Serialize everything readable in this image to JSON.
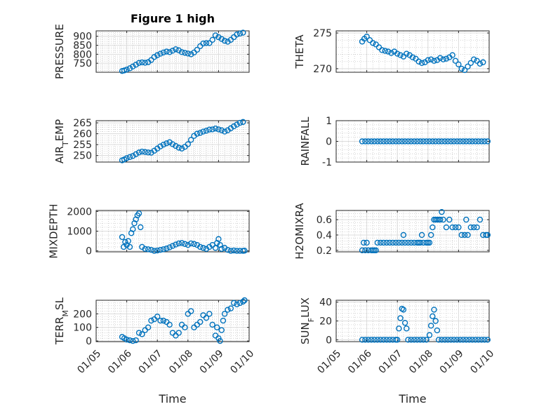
{
  "figure": {
    "title": "Figure 1 high",
    "xlabel": "Time",
    "marker_color": "#0072BD",
    "x_ticks": [
      "01/05",
      "01/06",
      "01/07",
      "01/08",
      "01/09",
      "01/10"
    ],
    "x_start": 5.0,
    "x_end": 10.0
  },
  "chart_data": [
    {
      "type": "scatter",
      "id": "pressure",
      "ylabel": "PRESSURE",
      "ylim": [
        700,
        930
      ],
      "yticks": [
        750,
        800,
        850,
        900
      ],
      "x": [
        5.85,
        5.92,
        6.0,
        6.1,
        6.2,
        6.3,
        6.4,
        6.5,
        6.6,
        6.7,
        6.8,
        6.9,
        7.0,
        7.1,
        7.2,
        7.3,
        7.4,
        7.5,
        7.6,
        7.7,
        7.8,
        7.9,
        8.0,
        8.1,
        8.2,
        8.3,
        8.4,
        8.5,
        8.6,
        8.7,
        8.8,
        8.9,
        9.0,
        9.1,
        9.2,
        9.3,
        9.4,
        9.5,
        9.6,
        9.7,
        9.8
      ],
      "y": [
        707,
        710,
        715,
        722,
        732,
        742,
        752,
        755,
        753,
        756,
        768,
        785,
        795,
        803,
        810,
        815,
        812,
        820,
        828,
        822,
        812,
        808,
        804,
        800,
        810,
        825,
        845,
        860,
        862,
        862,
        880,
        905,
        895,
        885,
        875,
        870,
        880,
        895,
        910,
        915,
        920
      ]
    },
    {
      "type": "scatter",
      "id": "theta",
      "ylabel": "THETA",
      "ylim": [
        269.5,
        275.3
      ],
      "yticks": [
        270,
        275
      ],
      "x": [
        5.85,
        5.92,
        6.0,
        6.1,
        6.2,
        6.3,
        6.4,
        6.5,
        6.6,
        6.7,
        6.8,
        6.9,
        7.0,
        7.1,
        7.2,
        7.3,
        7.4,
        7.5,
        7.6,
        7.7,
        7.8,
        7.9,
        8.0,
        8.1,
        8.2,
        8.3,
        8.4,
        8.5,
        8.6,
        8.7,
        8.8,
        8.9,
        9.0,
        9.1,
        9.2,
        9.3,
        9.4,
        9.5,
        9.6,
        9.7,
        9.8
      ],
      "y": [
        273.8,
        274.2,
        274.5,
        274.0,
        273.6,
        273.4,
        273.0,
        272.6,
        272.5,
        272.4,
        272.2,
        272.4,
        272.1,
        271.9,
        271.7,
        272.1,
        271.9,
        271.6,
        271.4,
        271.0,
        270.8,
        270.9,
        271.2,
        271.3,
        271.1,
        271.2,
        271.5,
        271.3,
        271.4,
        271.6,
        271.9,
        271.1,
        270.6,
        270.0,
        269.8,
        270.3,
        270.8,
        271.3,
        271.1,
        270.7,
        270.9
      ]
    },
    {
      "type": "scatter",
      "id": "air-temp",
      "ylabel": "AIR_TEMP",
      "ylim": [
        247,
        266
      ],
      "yticks": [
        250,
        255,
        260,
        265
      ],
      "x": [
        5.85,
        5.92,
        6.0,
        6.1,
        6.2,
        6.3,
        6.4,
        6.5,
        6.6,
        6.7,
        6.8,
        6.9,
        7.0,
        7.1,
        7.2,
        7.3,
        7.4,
        7.5,
        7.6,
        7.7,
        7.8,
        7.9,
        8.0,
        8.1,
        8.2,
        8.3,
        8.4,
        8.5,
        8.6,
        8.7,
        8.8,
        8.9,
        9.0,
        9.1,
        9.2,
        9.3,
        9.4,
        9.5,
        9.6,
        9.7,
        9.8
      ],
      "y": [
        247.8,
        248.2,
        248.8,
        249.3,
        249.8,
        250.6,
        251.4,
        251.8,
        251.6,
        251.4,
        251.3,
        252.2,
        253.2,
        254.2,
        255.0,
        255.6,
        256.1,
        255.2,
        254.4,
        253.6,
        253.2,
        254.0,
        255.2,
        257.2,
        259.0,
        260.0,
        260.4,
        261.0,
        261.4,
        261.9,
        262.0,
        262.4,
        262.0,
        261.6,
        261.0,
        261.6,
        262.5,
        263.4,
        264.2,
        265.0,
        265.4
      ]
    },
    {
      "type": "scatter",
      "id": "rainfall",
      "ylabel": "RAINFALL",
      "ylim": [
        -1,
        1
      ],
      "yticks": [
        -1,
        0,
        1
      ],
      "x": [
        5.85,
        5.95,
        6.05,
        6.15,
        6.25,
        6.35,
        6.45,
        6.55,
        6.65,
        6.75,
        6.85,
        6.95,
        7.05,
        7.15,
        7.25,
        7.35,
        7.45,
        7.55,
        7.65,
        7.75,
        7.85,
        7.95,
        8.05,
        8.15,
        8.25,
        8.35,
        8.45,
        8.55,
        8.65,
        8.75,
        8.85,
        8.95,
        9.05,
        9.15,
        9.25,
        9.35,
        9.45,
        9.55,
        9.65,
        9.75,
        9.85,
        9.95
      ],
      "y": [
        0,
        0,
        0,
        0,
        0,
        0,
        0,
        0,
        0,
        0,
        0,
        0,
        0,
        0,
        0,
        0,
        0,
        0,
        0,
        0,
        0,
        0,
        0,
        0,
        0,
        0,
        0,
        0,
        0,
        0,
        0,
        0,
        0,
        0,
        0,
        0,
        0,
        0,
        0,
        0,
        0,
        0
      ]
    },
    {
      "type": "scatter",
      "id": "mixdepth",
      "ylabel": "MIXDEPTH",
      "ylim": [
        -50,
        2050
      ],
      "yticks": [
        0,
        1000,
        2000
      ],
      "x": [
        5.85,
        5.9,
        5.95,
        6.0,
        6.05,
        6.1,
        6.15,
        6.2,
        6.25,
        6.3,
        6.35,
        6.4,
        6.45,
        6.5,
        6.6,
        6.7,
        6.8,
        6.9,
        7.0,
        7.1,
        7.2,
        7.3,
        7.4,
        7.5,
        7.6,
        7.7,
        7.8,
        7.9,
        8.0,
        8.1,
        8.2,
        8.3,
        8.4,
        8.5,
        8.6,
        8.7,
        8.8,
        8.9,
        8.95,
        9.0,
        9.05,
        9.1,
        9.2,
        9.3,
        9.4,
        9.5,
        9.6,
        9.7,
        9.8,
        9.85
      ],
      "y": [
        700,
        200,
        450,
        300,
        500,
        200,
        900,
        1100,
        1400,
        1600,
        1800,
        1900,
        1200,
        200,
        100,
        80,
        50,
        0,
        20,
        50,
        80,
        120,
        180,
        250,
        320,
        380,
        400,
        350,
        300,
        380,
        350,
        300,
        200,
        150,
        100,
        200,
        300,
        150,
        400,
        600,
        300,
        100,
        150,
        50,
        0,
        20,
        0,
        0,
        0,
        10
      ]
    },
    {
      "type": "scatter",
      "id": "h2omixra",
      "ylabel": "H2OMIXRA",
      "ylim": [
        0.18,
        0.72
      ],
      "yticks": [
        0.2,
        0.4,
        0.6
      ],
      "x": [
        5.85,
        5.95,
        6.05,
        6.15,
        6.25,
        6.35,
        6.45,
        6.55,
        6.65,
        6.75,
        6.85,
        6.95,
        7.05,
        7.15,
        7.25,
        7.35,
        7.45,
        7.55,
        7.65,
        7.75,
        7.85,
        7.95,
        8.0,
        8.05,
        8.1,
        8.15,
        8.2,
        8.25,
        8.3,
        8.35,
        8.4,
        8.45,
        8.5,
        8.6,
        8.7,
        8.8,
        8.9,
        9.0,
        9.1,
        9.2,
        9.3,
        9.4,
        9.5,
        9.6,
        9.7,
        9.8,
        9.9,
        9.95,
        5.9,
        6.0,
        6.2,
        6.3,
        7.2,
        7.7,
        7.8,
        9.25
      ],
      "y": [
        0.2,
        0.2,
        0.2,
        0.2,
        0.2,
        0.3,
        0.3,
        0.3,
        0.3,
        0.3,
        0.3,
        0.3,
        0.3,
        0.3,
        0.3,
        0.3,
        0.3,
        0.3,
        0.3,
        0.3,
        0.3,
        0.3,
        0.3,
        0.3,
        0.4,
        0.5,
        0.6,
        0.6,
        0.6,
        0.6,
        0.6,
        0.7,
        0.6,
        0.5,
        0.6,
        0.5,
        0.5,
        0.5,
        0.4,
        0.4,
        0.4,
        0.5,
        0.5,
        0.5,
        0.6,
        0.4,
        0.4,
        0.4,
        0.3,
        0.3,
        0.2,
        0.2,
        0.4,
        0.3,
        0.4,
        0.6
      ]
    },
    {
      "type": "scatter",
      "id": "terr-msl",
      "ylabel": "TERR_MSL",
      "ylim": [
        -5,
        300
      ],
      "yticks": [
        0,
        100,
        200
      ],
      "x": [
        5.85,
        5.92,
        6.0,
        6.1,
        6.2,
        6.3,
        6.4,
        6.5,
        6.6,
        6.7,
        6.8,
        6.9,
        7.0,
        7.1,
        7.2,
        7.3,
        7.4,
        7.5,
        7.6,
        7.7,
        7.8,
        7.9,
        8.0,
        8.1,
        8.2,
        8.3,
        8.4,
        8.5,
        8.6,
        8.7,
        8.8,
        8.9,
        8.95,
        9.0,
        9.05,
        9.1,
        9.15,
        9.2,
        9.3,
        9.4,
        9.5,
        9.6,
        9.7,
        9.8,
        9.85
      ],
      "y": [
        30,
        20,
        10,
        5,
        0,
        5,
        60,
        50,
        80,
        100,
        150,
        160,
        180,
        150,
        150,
        140,
        120,
        60,
        40,
        60,
        120,
        100,
        200,
        220,
        100,
        120,
        140,
        190,
        170,
        200,
        120,
        40,
        100,
        20,
        0,
        80,
        150,
        200,
        230,
        240,
        280,
        270,
        280,
        290,
        300
      ]
    },
    {
      "type": "scatter",
      "id": "sun-flux",
      "ylabel": "SUN_FLUX",
      "ylim": [
        -2,
        42
      ],
      "yticks": [
        0,
        20,
        40
      ],
      "x": [
        5.85,
        5.95,
        6.05,
        6.15,
        6.25,
        6.35,
        6.45,
        6.55,
        6.65,
        6.75,
        6.85,
        6.95,
        7.0,
        7.05,
        7.1,
        7.15,
        7.2,
        7.25,
        7.3,
        7.35,
        7.45,
        7.55,
        7.65,
        7.75,
        7.85,
        7.95,
        8.05,
        8.1,
        8.15,
        8.2,
        8.25,
        8.3,
        8.35,
        8.45,
        8.55,
        8.65,
        8.75,
        8.85,
        8.95,
        9.05,
        9.15,
        9.25,
        9.35,
        9.45,
        9.55,
        9.65,
        9.75,
        9.85,
        9.95
      ],
      "y": [
        0,
        0,
        0,
        0,
        0,
        0,
        0,
        0,
        0,
        0,
        0,
        0,
        0,
        12,
        23,
        33,
        32,
        18,
        12,
        0,
        0,
        0,
        0,
        0,
        0,
        0,
        5,
        15,
        25,
        32,
        20,
        10,
        0,
        0,
        0,
        0,
        0,
        0,
        0,
        0,
        0,
        0,
        0,
        0,
        0,
        0,
        0,
        0,
        0
      ]
    }
  ]
}
